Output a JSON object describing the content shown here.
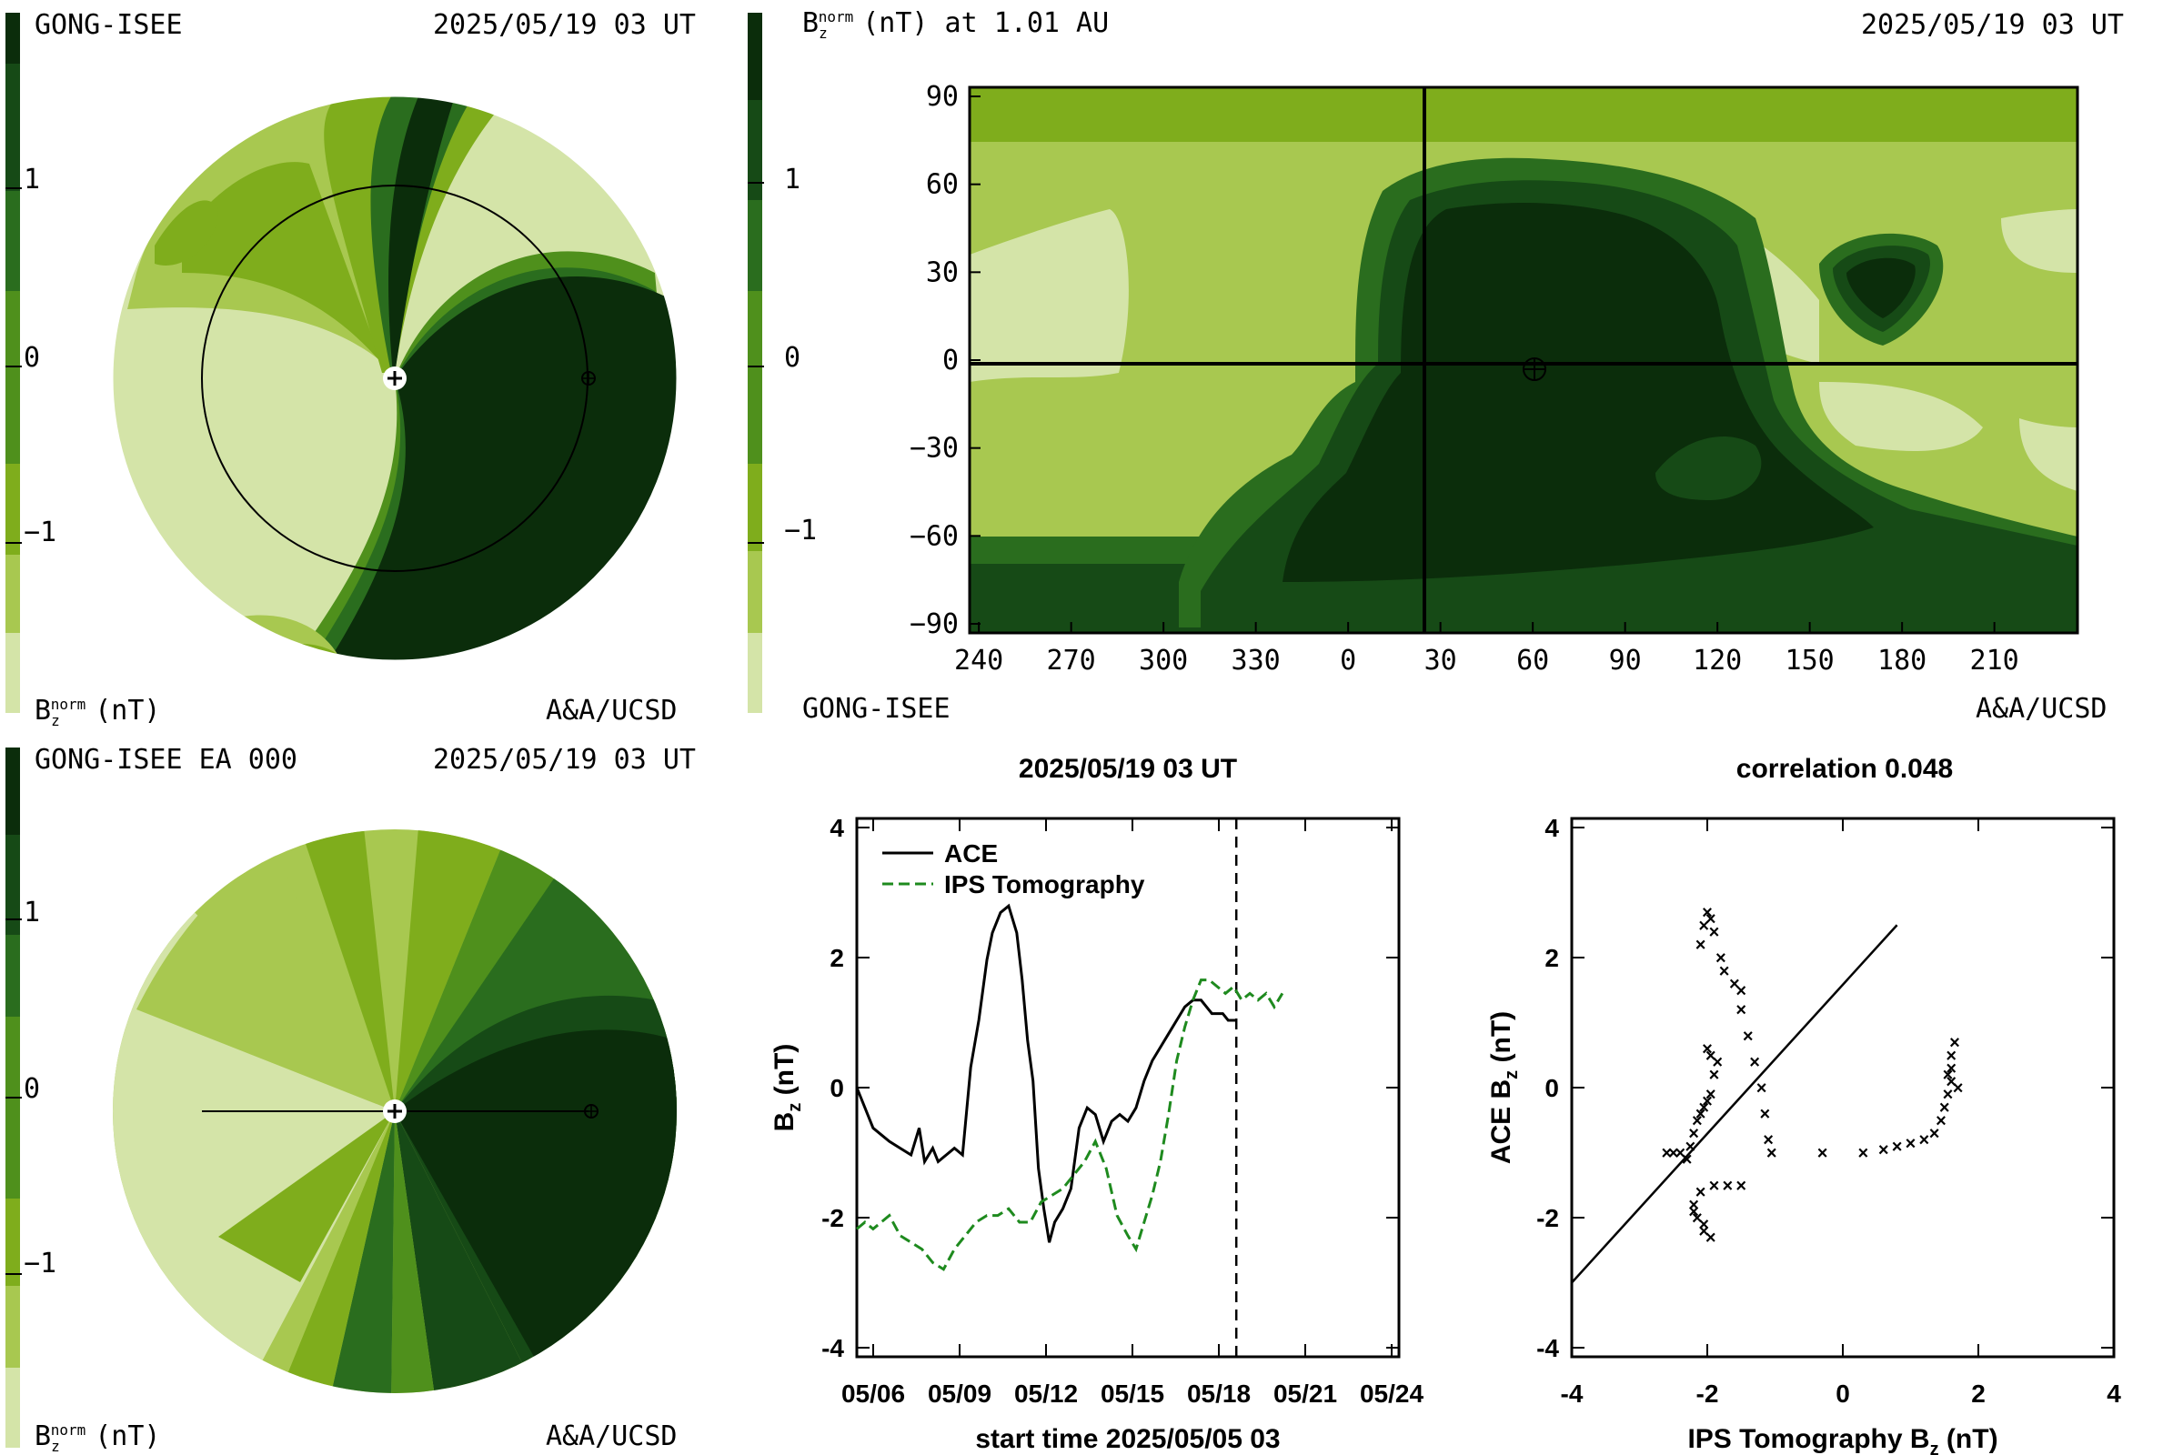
{
  "colors": {
    "levels": [
      "#d4e4a8",
      "#a8c850",
      "#7fad1c",
      "#4f901c",
      "#2a6d1e",
      "#164a16",
      "#0b2d0b"
    ],
    "ips": "#1e8a1e",
    "ace": "#000000"
  },
  "top_left": {
    "source": "GONG-ISEE",
    "time": "2025/05/19 03 UT",
    "unit": "(nT)",
    "credit": "A&A/UCSD",
    "cbar_ticks": [
      "1",
      "0",
      "−1"
    ]
  },
  "top_right": {
    "title": "(nT) at 1.01 AU",
    "time": "2025/05/19 03 UT",
    "source": "GONG-ISEE",
    "credit": "A&A/UCSD",
    "cbar_ticks": [
      "1",
      "0",
      "−1"
    ]
  },
  "bottom_left": {
    "source": "GONG-ISEE EA 000",
    "time": "2025/05/19 03 UT",
    "unit": "(nT)",
    "credit": "A&A/UCSD",
    "cbar_ticks": [
      "1",
      "0",
      "−1"
    ]
  },
  "chart_data": [
    {
      "type": "heatmap",
      "title": "B_z^norm (nT) at 1.01 AU",
      "x_tick_labels": [
        "240",
        "270",
        "300",
        "330",
        "0",
        "30",
        "60",
        "90",
        "120",
        "150",
        "180",
        "210"
      ],
      "y_tick_labels": [
        "90",
        "60",
        "30",
        "0",
        "−30",
        "−60",
        "−90"
      ],
      "ylim": [
        -90,
        90
      ]
    },
    {
      "type": "line",
      "title": "2025/05/19 03 UT",
      "xlabel": "start time 2025/05/05 03",
      "ylabel": "B",
      "ylabel_sub": "z",
      "ylabel_unit": "(nT)",
      "x_ticks": [
        "05/06",
        "05/09",
        "05/12",
        "05/15",
        "05/18",
        "05/21",
        "05/24"
      ],
      "y_ticks": [
        "4",
        "2",
        "0",
        "-2",
        "-4"
      ],
      "xlim": [
        0,
        20
      ],
      "ylim": [
        -4,
        4
      ],
      "now_day": 14,
      "legend": [
        "ACE",
        "IPS Tomography"
      ],
      "series": [
        {
          "name": "ACE",
          "x": [
            0,
            0.3,
            0.6,
            0.9,
            1.2,
            1.6,
            2.0,
            2.3,
            2.5,
            2.8,
            3.0,
            3.3,
            3.6,
            3.9,
            4.2,
            4.5,
            4.8,
            5.0,
            5.3,
            5.6,
            5.9,
            6.1,
            6.3,
            6.5,
            6.7,
            6.9,
            7.1,
            7.3,
            7.6,
            7.9,
            8.2,
            8.5,
            8.8,
            9.1,
            9.4,
            9.7,
            10.0,
            10.3,
            10.6,
            10.9,
            11.2,
            11.5,
            11.8,
            12.1,
            12.4,
            12.7,
            12.9,
            13.1,
            13.3,
            13.5,
            13.7,
            13.9,
            14.0
          ],
          "y": [
            0,
            -0.3,
            -0.6,
            -0.7,
            -0.8,
            -0.9,
            -1.0,
            -0.6,
            -1.1,
            -0.9,
            -1.1,
            -1.0,
            -0.9,
            -1.0,
            0.3,
            1.0,
            1.9,
            2.3,
            2.6,
            2.7,
            2.3,
            1.6,
            0.7,
            0.1,
            -1.2,
            -1.8,
            -2.3,
            -2.0,
            -1.8,
            -1.5,
            -0.6,
            -0.3,
            -0.4,
            -0.8,
            -0.5,
            -0.4,
            -0.5,
            -0.3,
            0.1,
            0.4,
            0.6,
            0.8,
            1.0,
            1.2,
            1.3,
            1.3,
            1.2,
            1.1,
            1.1,
            1.1,
            1.0,
            1.0,
            1.0
          ]
        },
        {
          "name": "IPS Tomography",
          "x": [
            0,
            0.3,
            0.6,
            0.9,
            1.2,
            1.6,
            2.0,
            2.4,
            2.8,
            3.2,
            3.6,
            4.0,
            4.4,
            4.8,
            5.2,
            5.6,
            6.0,
            6.4,
            6.8,
            7.2,
            7.6,
            8.0,
            8.4,
            8.8,
            9.2,
            9.6,
            10.0,
            10.3,
            10.6,
            10.9,
            11.2,
            11.5,
            11.8,
            12.1,
            12.4,
            12.7,
            13.0,
            13.3,
            13.6,
            13.9,
            14.2,
            14.5,
            14.8,
            15.1,
            15.4,
            15.7
          ],
          "y": [
            -2.1,
            -2.0,
            -2.1,
            -2.0,
            -1.9,
            -2.2,
            -2.3,
            -2.4,
            -2.6,
            -2.7,
            -2.4,
            -2.2,
            -2.0,
            -1.9,
            -1.9,
            -1.8,
            -2.0,
            -2.0,
            -1.7,
            -1.6,
            -1.5,
            -1.3,
            -1.1,
            -0.8,
            -1.2,
            -1.9,
            -2.2,
            -2.4,
            -2.0,
            -1.6,
            -1.1,
            -0.4,
            0.4,
            0.9,
            1.3,
            1.6,
            1.6,
            1.5,
            1.4,
            1.5,
            1.3,
            1.4,
            1.3,
            1.4,
            1.2,
            1.4
          ]
        }
      ]
    },
    {
      "type": "scatter",
      "title": "correlation 0.048",
      "xlabel": "IPS Tomography B",
      "xlabel_sub": "z",
      "xlabel_unit": "(nT)",
      "ylabel": "ACE B",
      "ylabel_sub": "z",
      "ylabel_unit": "(nT)",
      "x_ticks": [
        "-4",
        "-2",
        "0",
        "2",
        "4"
      ],
      "y_ticks": [
        "4",
        "2",
        "0",
        "-2",
        "-4"
      ],
      "xlim": [
        -4,
        4
      ],
      "ylim": [
        -4,
        4
      ],
      "fit_line": {
        "x": [
          -4,
          0.8
        ],
        "y": [
          -3.0,
          2.5
        ]
      },
      "points": [
        [
          -2.6,
          -1.0
        ],
        [
          -2.5,
          -1.0
        ],
        [
          -2.4,
          -1.0
        ],
        [
          -2.3,
          -1.1
        ],
        [
          -2.25,
          -0.9
        ],
        [
          -2.2,
          -0.7
        ],
        [
          -2.15,
          -0.5
        ],
        [
          -2.1,
          -0.4
        ],
        [
          -2.05,
          -0.3
        ],
        [
          -2.0,
          -0.2
        ],
        [
          -1.95,
          -0.1
        ],
        [
          -1.9,
          0.2
        ],
        [
          -1.85,
          0.4
        ],
        [
          -1.95,
          0.5
        ],
        [
          -2.0,
          0.6
        ],
        [
          -2.0,
          2.7
        ],
        [
          -1.95,
          2.6
        ],
        [
          -2.05,
          2.5
        ],
        [
          -1.9,
          2.4
        ],
        [
          -2.1,
          2.2
        ],
        [
          -1.8,
          2.0
        ],
        [
          -1.75,
          1.8
        ],
        [
          -1.6,
          1.6
        ],
        [
          -1.5,
          1.5
        ],
        [
          -1.5,
          1.2
        ],
        [
          -1.4,
          0.8
        ],
        [
          -1.3,
          0.4
        ],
        [
          -1.2,
          0.0
        ],
        [
          -1.15,
          -0.4
        ],
        [
          -1.1,
          -0.8
        ],
        [
          -1.05,
          -1.0
        ],
        [
          -1.5,
          -1.5
        ],
        [
          -1.7,
          -1.5
        ],
        [
          -1.9,
          -1.5
        ],
        [
          -2.1,
          -1.6
        ],
        [
          -2.2,
          -1.8
        ],
        [
          -2.15,
          -2.0
        ],
        [
          -2.05,
          -2.1
        ],
        [
          -1.95,
          -2.3
        ],
        [
          -2.05,
          -2.2
        ],
        [
          -2.2,
          -1.9
        ],
        [
          -0.3,
          -1.0
        ],
        [
          0.3,
          -1.0
        ],
        [
          0.6,
          -0.95
        ],
        [
          0.8,
          -0.9
        ],
        [
          1.0,
          -0.85
        ],
        [
          1.2,
          -0.8
        ],
        [
          1.35,
          -0.7
        ],
        [
          1.45,
          -0.5
        ],
        [
          1.5,
          -0.3
        ],
        [
          1.55,
          -0.1
        ],
        [
          1.6,
          0.1
        ],
        [
          1.6,
          0.3
        ],
        [
          1.6,
          0.5
        ],
        [
          1.65,
          0.7
        ],
        [
          1.7,
          0.0
        ],
        [
          1.55,
          0.2
        ]
      ]
    }
  ]
}
